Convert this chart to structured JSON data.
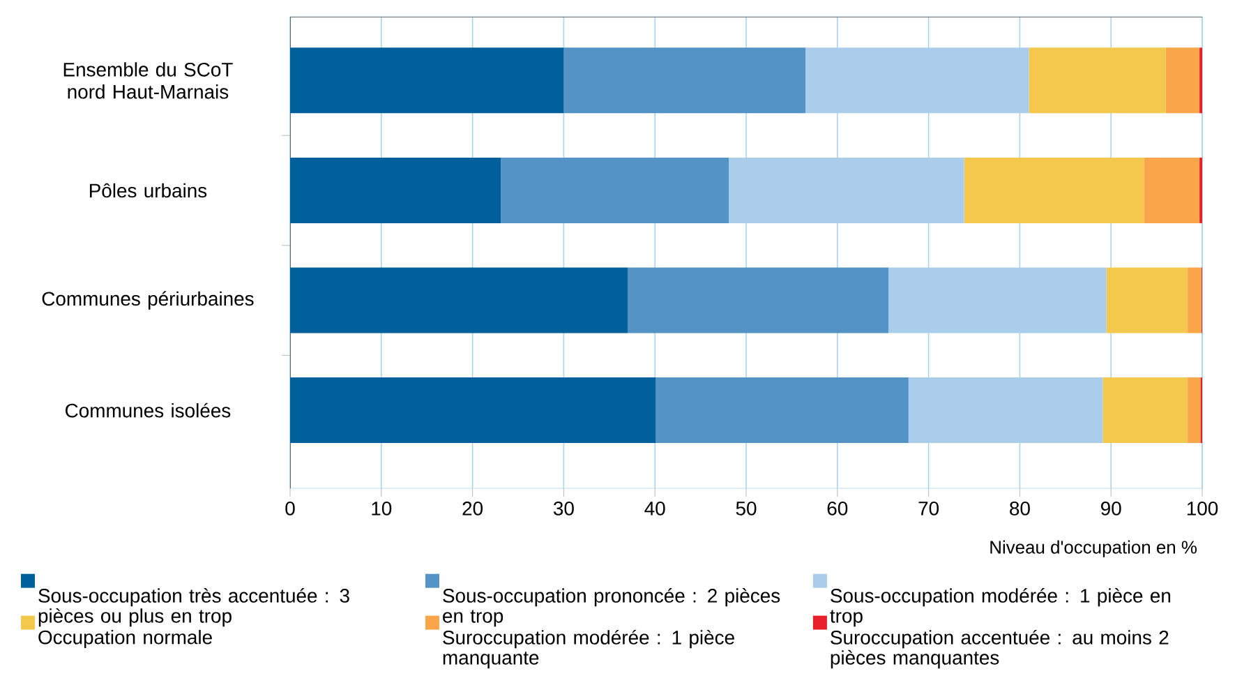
{
  "chart_data": {
    "type": "bar",
    "orientation": "horizontal",
    "stacked": true,
    "categories": [
      "Ensemble du SCoT nord Haut-Marnais",
      "Pôles urbains",
      "Communes périurbaines",
      "Communes isolées"
    ],
    "series": [
      {
        "name": "Sous-occupation très accentuée : 3 pièces ou plus en trop",
        "color": "#00609c",
        "values": [
          30.0,
          23.1,
          37.0,
          40.1
        ]
      },
      {
        "name": "Sous-occupation prononcée : 2 pièces en trop",
        "color": "#5393c5",
        "values": [
          26.5,
          25.0,
          28.6,
          27.7
        ]
      },
      {
        "name": "Sous-occupation modérée : 1 pièce en trop",
        "color": "#abcdec",
        "values": [
          24.5,
          25.8,
          23.9,
          21.3
        ]
      },
      {
        "name": "Occupation normale",
        "color": "#f2c94c",
        "values": [
          15.0,
          19.7,
          8.9,
          9.3
        ]
      },
      {
        "name": "Suroccupation modérée : 1 pièce manquante",
        "color": "#f9a54a",
        "values": [
          3.7,
          6.1,
          1.5,
          1.4
        ]
      },
      {
        "name": "Suroccupation accentuée : au moins 2 pièces manquantes",
        "color": "#e8202a",
        "values": [
          0.3,
          0.3,
          0.1,
          0.2
        ]
      }
    ],
    "xlabel": "Niveau d'occupation en %",
    "xlim": [
      0,
      100
    ],
    "xticks": [
      0,
      10,
      20,
      30,
      40,
      50,
      60,
      70,
      80,
      90,
      100
    ],
    "grid": "x",
    "legend": "bottom"
  }
}
